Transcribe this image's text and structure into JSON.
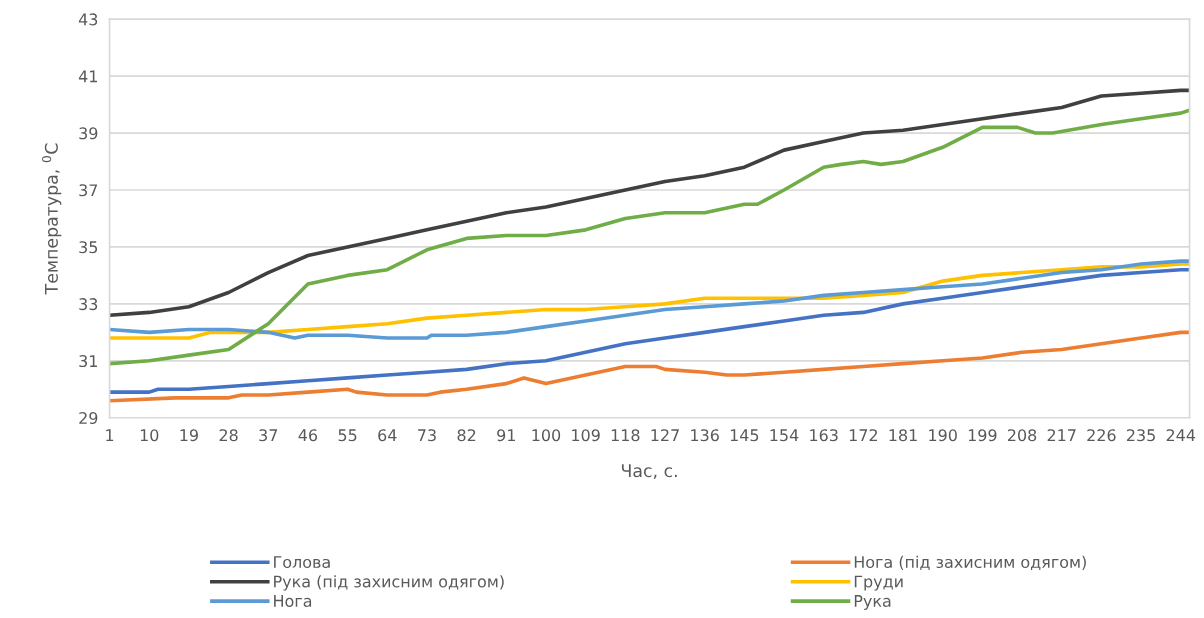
{
  "chart_data": {
    "type": "line",
    "xlabel": "Час, с.",
    "ylabel": "Температура, $^{0}$C",
    "xlim": [
      1,
      246
    ],
    "xticks": [
      1,
      10,
      19,
      28,
      37,
      46,
      55,
      64,
      73,
      82,
      91,
      100,
      109,
      118,
      127,
      136,
      145,
      154,
      163,
      172,
      181,
      190,
      199,
      208,
      217,
      226,
      235,
      244
    ],
    "ylim": [
      29,
      43
    ],
    "yticks": [
      29,
      31,
      33,
      35,
      37,
      39,
      41,
      43
    ],
    "grid": "y",
    "legend": "bottom",
    "marker": "none",
    "line_style": "solid",
    "series": [
      {
        "name": "Голова",
        "color": "#4472c4",
        "x": [
          1,
          10,
          12,
          19,
          28,
          37,
          46,
          55,
          64,
          73,
          82,
          91,
          100,
          109,
          118,
          127,
          136,
          145,
          154,
          163,
          172,
          181,
          190,
          199,
          208,
          217,
          226,
          235,
          244,
          246
        ],
        "values": [
          29.9,
          29.9,
          30.0,
          30.0,
          30.1,
          30.2,
          30.3,
          30.4,
          30.5,
          30.6,
          30.7,
          30.9,
          31.0,
          31.3,
          31.6,
          31.8,
          32.0,
          32.2,
          32.4,
          32.6,
          32.7,
          33.0,
          33.2,
          33.4,
          33.6,
          33.8,
          34.0,
          34.1,
          34.2,
          34.2
        ]
      },
      {
        "name": "Нога (під захисним одягом)",
        "color": "#ed7d31",
        "x": [
          1,
          16,
          28,
          31,
          37,
          46,
          55,
          57,
          64,
          73,
          76,
          82,
          91,
          95,
          100,
          109,
          118,
          125,
          127,
          136,
          141,
          145,
          154,
          163,
          172,
          181,
          190,
          199,
          208,
          217,
          226,
          235,
          244,
          246
        ],
        "values": [
          29.6,
          29.7,
          29.7,
          29.8,
          29.8,
          29.9,
          30.0,
          29.9,
          29.8,
          29.8,
          29.9,
          30.0,
          30.2,
          30.4,
          30.2,
          30.5,
          30.8,
          30.8,
          30.7,
          30.6,
          30.5,
          30.5,
          30.6,
          30.7,
          30.8,
          30.9,
          31.0,
          31.1,
          31.3,
          31.4,
          31.6,
          31.8,
          32.0,
          32.0
        ]
      },
      {
        "name": "Рука (під захисним одягом)",
        "color": "#404040",
        "x": [
          1,
          10,
          19,
          28,
          37,
          46,
          55,
          64,
          73,
          82,
          91,
          100,
          109,
          118,
          127,
          136,
          145,
          154,
          163,
          172,
          181,
          190,
          199,
          208,
          217,
          226,
          235,
          244,
          246
        ],
        "values": [
          32.6,
          32.7,
          32.9,
          33.4,
          34.1,
          34.7,
          35.0,
          35.3,
          35.6,
          35.9,
          36.2,
          36.4,
          36.7,
          37.0,
          37.3,
          37.5,
          37.8,
          38.4,
          38.7,
          39.0,
          39.1,
          39.3,
          39.5,
          39.7,
          39.9,
          40.3,
          40.4,
          40.5,
          40.5
        ]
      },
      {
        "name": "Груди",
        "color": "#ffc000",
        "x": [
          1,
          19,
          24,
          37,
          46,
          55,
          64,
          73,
          82,
          91,
          100,
          109,
          118,
          127,
          136,
          145,
          154,
          163,
          172,
          181,
          190,
          199,
          208,
          217,
          226,
          235,
          244,
          246
        ],
        "values": [
          31.8,
          31.8,
          32.0,
          32.0,
          32.1,
          32.2,
          32.3,
          32.5,
          32.6,
          32.7,
          32.8,
          32.8,
          32.9,
          33.0,
          33.2,
          33.2,
          33.2,
          33.2,
          33.3,
          33.4,
          33.8,
          34.0,
          34.1,
          34.2,
          34.3,
          34.3,
          34.4,
          34.4
        ]
      },
      {
        "name": "Нога",
        "color": "#5b9bd5",
        "x": [
          1,
          10,
          19,
          23,
          28,
          37,
          43,
          46,
          55,
          64,
          73,
          74,
          82,
          91,
          100,
          109,
          118,
          127,
          136,
          145,
          154,
          163,
          172,
          181,
          190,
          199,
          208,
          217,
          226,
          235,
          244,
          246
        ],
        "values": [
          32.1,
          32.0,
          32.1,
          32.1,
          32.1,
          32.0,
          31.8,
          31.9,
          31.9,
          31.8,
          31.8,
          31.9,
          31.9,
          32.0,
          32.2,
          32.4,
          32.6,
          32.8,
          32.9,
          33.0,
          33.1,
          33.3,
          33.4,
          33.5,
          33.6,
          33.7,
          33.9,
          34.1,
          34.2,
          34.4,
          34.5,
          34.5
        ]
      },
      {
        "name": "Рука",
        "color": "#70ad47",
        "x": [
          1,
          10,
          19,
          28,
          37,
          46,
          55,
          64,
          73,
          82,
          91,
          100,
          109,
          118,
          127,
          136,
          145,
          148,
          154,
          163,
          167,
          172,
          176,
          181,
          190,
          199,
          207,
          211,
          215,
          226,
          235,
          244,
          246
        ],
        "values": [
          30.9,
          31.0,
          31.2,
          31.4,
          32.3,
          33.7,
          34.0,
          34.2,
          34.9,
          35.3,
          35.4,
          35.4,
          35.6,
          36.0,
          36.2,
          36.2,
          36.5,
          36.5,
          37.0,
          37.8,
          37.9,
          38.0,
          37.9,
          38.0,
          38.5,
          39.2,
          39.2,
          39.0,
          39.0,
          39.3,
          39.5,
          39.7,
          39.8
        ]
      }
    ]
  }
}
